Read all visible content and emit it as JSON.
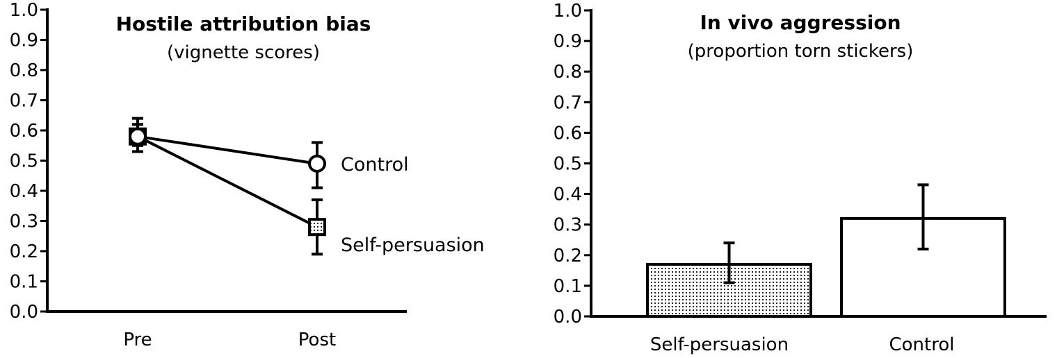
{
  "chart_data": [
    {
      "type": "line",
      "title": "Hostile attribution bias",
      "subtitle": "(vignette scores)",
      "categories": [
        "Pre",
        "Post"
      ],
      "ylim": [
        0,
        1
      ],
      "yticks": [
        "0.0",
        "0.1",
        "0.2",
        "0.3",
        "0.4",
        "0.5",
        "0.6",
        "0.7",
        "0.8",
        "0.9",
        "1.0"
      ],
      "series": [
        {
          "name": "Control",
          "marker": "circle",
          "values": [
            0.58,
            0.49
          ],
          "err_low": [
            0.55,
            0.41
          ],
          "err_high": [
            0.64,
            0.56
          ]
        },
        {
          "name": "Self-persuasion",
          "marker": "square",
          "values": [
            0.58,
            0.28
          ],
          "err_low": [
            0.53,
            0.19
          ],
          "err_high": [
            0.62,
            0.37
          ]
        }
      ],
      "grid": false,
      "legend": "inline labels at right of lines"
    },
    {
      "type": "bar",
      "title": "In vivo aggression",
      "subtitle": "(proportion torn stickers)",
      "categories": [
        "Self-persuasion",
        "Control"
      ],
      "values": [
        0.17,
        0.32
      ],
      "err_low": [
        0.11,
        0.22
      ],
      "err_high": [
        0.24,
        0.43
      ],
      "fills": [
        "dotted",
        "white"
      ],
      "ylim": [
        0,
        1
      ],
      "yticks": [
        "0.0",
        "0.1",
        "0.2",
        "0.3",
        "0.4",
        "0.5",
        "0.6",
        "0.7",
        "0.8",
        "0.9",
        "1.0"
      ],
      "grid": false
    }
  ]
}
